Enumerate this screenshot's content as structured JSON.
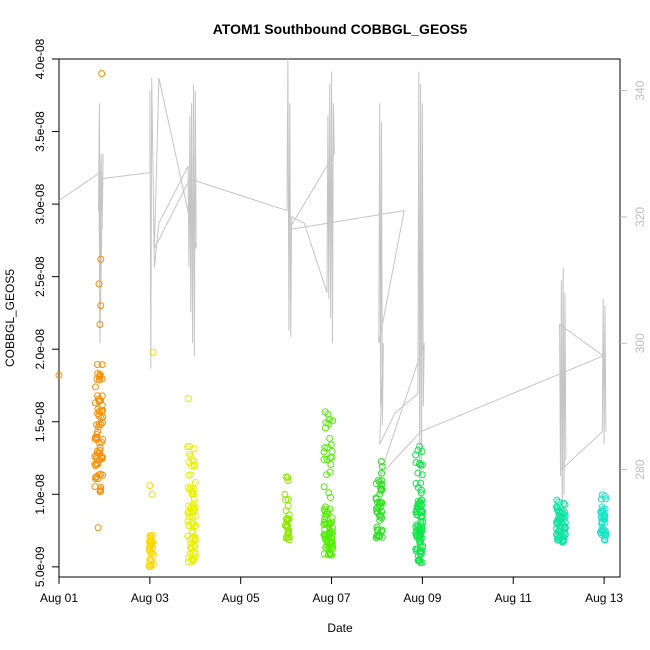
{
  "chart_data": {
    "type": "scatter",
    "title": "ATOM1 Southbound COBBGL_GEOS5",
    "xlabel": "Date",
    "ylabel": "COBBGL_GEOS5",
    "xlim": [
      0,
      12.35
    ],
    "ylim": [
      4.3e-09,
      4e-08
    ],
    "y2lim": [
      263,
      345
    ],
    "x_ticks": [
      {
        "value": 0,
        "label": "Aug 01"
      },
      {
        "value": 2,
        "label": "Aug 03"
      },
      {
        "value": 4,
        "label": "Aug 05"
      },
      {
        "value": 6,
        "label": "Aug 07"
      },
      {
        "value": 8,
        "label": "Aug 09"
      },
      {
        "value": 10,
        "label": "Aug 11"
      },
      {
        "value": 12,
        "label": "Aug 13"
      }
    ],
    "y_ticks": [
      {
        "value": 5e-09,
        "label": "5.0e-09"
      },
      {
        "value": 1e-08,
        "label": "1.0e-08"
      },
      {
        "value": 1.5e-08,
        "label": "1.5e-08"
      },
      {
        "value": 2e-08,
        "label": "2.0e-08"
      },
      {
        "value": 2.5e-08,
        "label": "2.5e-08"
      },
      {
        "value": 3e-08,
        "label": "3.0e-08"
      },
      {
        "value": 3.5e-08,
        "label": "3.5e-08"
      },
      {
        "value": 4e-08,
        "label": "4.0e-08"
      }
    ],
    "y2_ticks": [
      {
        "value": 280,
        "label": "280"
      },
      {
        "value": 300,
        "label": "300"
      },
      {
        "value": 320,
        "label": "320"
      },
      {
        "value": 340,
        "label": "340"
      }
    ],
    "colors": {
      "axis": "#000000",
      "secondary_axis": "#bebebe",
      "line": "#c4c4c4"
    },
    "series": [
      {
        "name": "COBBGL_GEOS5",
        "clusters": [
          {
            "x_center": 0.88,
            "x_spread": 0.09,
            "y_lo": 1e-08,
            "y_hi": 1.9e-08,
            "y_center": 1.35e-08,
            "n": 70,
            "color": "#ff8c00",
            "extra": [
              [
                0.0,
                1.82e-08
              ],
              [
                0.94,
                3.9e-08
              ],
              [
                0.92,
                2.62e-08
              ],
              [
                0.88,
                2.45e-08
              ],
              [
                0.92,
                2.3e-08
              ],
              [
                0.9,
                2.17e-08
              ],
              [
                0.86,
                7.7e-09
              ]
            ]
          },
          {
            "x_center": 2.03,
            "x_spread": 0.05,
            "y_lo": 5e-09,
            "y_hi": 7.2e-09,
            "y_center": 6e-09,
            "n": 28,
            "color": "#ffd700",
            "extra": [
              [
                2.07,
                1.98e-08
              ],
              [
                2.0,
                1.06e-08
              ],
              [
                2.05,
                1e-08
              ]
            ]
          },
          {
            "x_center": 2.92,
            "x_spread": 0.09,
            "y_lo": 5.2e-09,
            "y_hi": 1.45e-08,
            "y_center": 8e-09,
            "n": 75,
            "color": "#e8f000",
            "extra": [
              [
                2.85,
                1.66e-08
              ]
            ]
          },
          {
            "x_center": 5.02,
            "x_spread": 0.05,
            "y_lo": 6.8e-09,
            "y_hi": 1.17e-08,
            "y_center": 8e-09,
            "n": 30,
            "color": "#90e800",
            "extra": []
          },
          {
            "x_center": 5.93,
            "x_spread": 0.1,
            "y_lo": 5.8e-09,
            "y_hi": 1.57e-08,
            "y_center": 7.5e-09,
            "n": 80,
            "color": "#50ee00",
            "extra": []
          },
          {
            "x_center": 7.05,
            "x_spread": 0.07,
            "y_lo": 7e-09,
            "y_hi": 1.3e-08,
            "y_center": 9e-09,
            "n": 45,
            "color": "#2de020",
            "extra": []
          },
          {
            "x_center": 7.93,
            "x_spread": 0.08,
            "y_lo": 5.3e-09,
            "y_hi": 1.35e-08,
            "y_center": 7.5e-09,
            "n": 95,
            "color": "#12e64a",
            "extra": []
          },
          {
            "x_center": 11.05,
            "x_spread": 0.1,
            "y_lo": 6.7e-09,
            "y_hi": 9.6e-09,
            "y_center": 7.8e-09,
            "n": 60,
            "color": "#10e3a0",
            "extra": []
          },
          {
            "x_center": 11.98,
            "x_spread": 0.06,
            "y_lo": 6.8e-09,
            "y_hi": 1e-08,
            "y_center": 8e-09,
            "n": 40,
            "color": "#16e6c8",
            "extra": []
          }
        ]
      },
      {
        "name": "secondary_axis_line",
        "axis": "right",
        "path": [
          [
            0.0,
            322.6
          ],
          [
            0.9,
            327.0
          ],
          [
            0.87,
            321.0
          ],
          [
            0.89,
            338.0
          ],
          [
            0.91,
            310.0
          ],
          [
            0.93,
            330.0
          ],
          [
            0.95,
            318.0
          ],
          [
            0.97,
            330.0
          ],
          [
            0.9,
            300.0
          ],
          [
            0.88,
            326.0
          ],
          [
            2.0,
            327.0
          ],
          [
            2.0,
            340.0
          ],
          [
            2.02,
            296.0
          ],
          [
            2.04,
            342.0
          ],
          [
            2.1,
            312.0
          ],
          [
            2.2,
            319.0
          ],
          [
            2.84,
            328.0
          ],
          [
            2.86,
            312.0
          ],
          [
            2.88,
            336.0
          ],
          [
            2.9,
            305.0
          ],
          [
            2.92,
            338.0
          ],
          [
            2.94,
            300.0
          ],
          [
            2.96,
            341.0
          ],
          [
            2.98,
            298.0
          ],
          [
            3.0,
            340.0
          ],
          [
            3.02,
            315.0
          ],
          [
            2.2,
            342.0
          ],
          [
            2.1,
            315.0
          ],
          [
            2.88,
            326.0
          ],
          [
            5.02,
            321.0
          ],
          [
            5.04,
            345.0
          ],
          [
            5.06,
            302.0
          ],
          [
            5.08,
            338.0
          ],
          [
            5.1,
            301.0
          ],
          [
            5.12,
            320.0
          ],
          [
            5.4,
            319.0
          ],
          [
            5.9,
            308.0
          ],
          [
            5.92,
            336.0
          ],
          [
            5.94,
            307.0
          ],
          [
            5.96,
            341.0
          ],
          [
            5.98,
            304.0
          ],
          [
            6.0,
            343.0
          ],
          [
            6.02,
            300.0
          ],
          [
            6.04,
            338.0
          ],
          [
            6.06,
            330.0
          ],
          [
            5.06,
            318.0
          ],
          [
            7.6,
            321.0
          ],
          [
            7.04,
            300.0
          ],
          [
            7.06,
            338.0
          ],
          [
            7.08,
            290.0
          ],
          [
            7.1,
            335.0
          ],
          [
            7.12,
            287.0
          ],
          [
            7.14,
            300.0
          ],
          [
            7.06,
            284.0
          ],
          [
            7.4,
            289.0
          ],
          [
            7.9,
            292.0
          ],
          [
            7.92,
            343.0
          ],
          [
            7.94,
            278.0
          ],
          [
            7.96,
            341.0
          ],
          [
            7.98,
            280.0
          ],
          [
            8.0,
            338.0
          ],
          [
            8.02,
            290.0
          ],
          [
            8.04,
            300.0
          ],
          [
            7.06,
            279.0
          ],
          [
            7.96,
            286.0
          ],
          [
            11.98,
            298.0
          ],
          [
            11.02,
            303.0
          ],
          [
            11.04,
            279.0
          ],
          [
            11.06,
            310.0
          ],
          [
            11.08,
            270.0
          ],
          [
            11.1,
            312.0
          ],
          [
            11.12,
            276.0
          ],
          [
            11.14,
            308.0
          ],
          [
            11.16,
            282.0
          ],
          [
            11.06,
            280.0
          ],
          [
            11.96,
            286.0
          ],
          [
            11.98,
            307.0
          ],
          [
            12.0,
            284.0
          ],
          [
            12.02,
            306.0
          ],
          [
            12.04,
            286.0
          ]
        ]
      }
    ]
  }
}
